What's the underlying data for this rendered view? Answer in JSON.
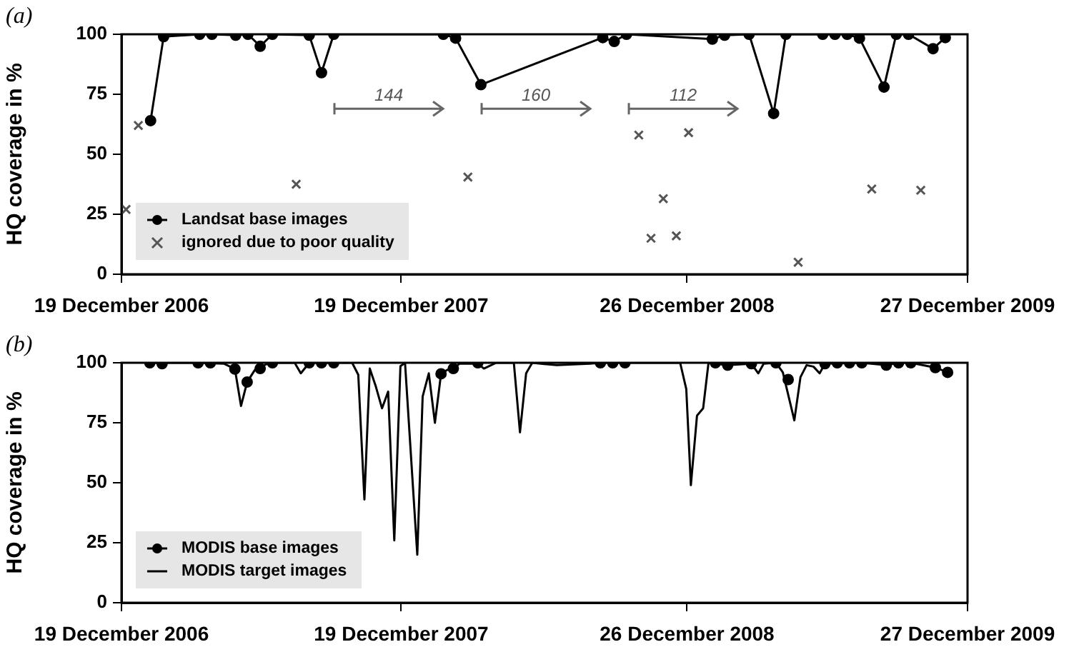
{
  "chart_data": [
    {
      "type": "line",
      "ylabel": "HQ coverage in %",
      "xlim": [
        "2006-12-19",
        "2009-12-27"
      ],
      "ylim": [
        0,
        100
      ],
      "xticks": [
        {
          "value": "2006-12-19",
          "label": "19 December 2006"
        },
        {
          "value": "2007-12-19",
          "label": "19 December 2007"
        },
        {
          "value": "2008-12-26",
          "label": "26 December 2008"
        },
        {
          "value": "2009-12-27",
          "label": "27 December 2009"
        }
      ],
      "yticks": [
        0,
        25,
        50,
        75,
        100
      ],
      "legend": "bottom left",
      "annotations": [
        "(a)",
        "144",
        "160",
        "112"
      ],
      "series": [
        {
          "name": "Landsat base images",
          "marker": "circle",
          "color": "#000000",
          "x": [
            "2007-01-26",
            "2007-02-12",
            "2007-03-31",
            "2007-04-16",
            "2007-05-17",
            "2007-06-02",
            "2007-06-18",
            "2007-07-04",
            "2007-08-21",
            "2007-09-06",
            "2007-09-22",
            "2008-02-12",
            "2008-02-28",
            "2008-04-01",
            "2008-09-07",
            "2008-09-22",
            "2008-10-08",
            "2009-01-28",
            "2009-02-13",
            "2009-03-17",
            "2009-04-18",
            "2009-05-04",
            "2009-06-21",
            "2009-07-07",
            "2009-07-23",
            "2009-08-08",
            "2009-09-09",
            "2009-09-25",
            "2009-10-11",
            "2009-11-12",
            "2009-11-28"
          ],
          "values": [
            64,
            99,
            100,
            100,
            99.6,
            100,
            95,
            100,
            99.6,
            84,
            100,
            100,
            98.4,
            79,
            98.6,
            97,
            100,
            98,
            99.6,
            100,
            67,
            100,
            100,
            100,
            100,
            98.4,
            78,
            100,
            100,
            94,
            98.6
          ]
        },
        {
          "name": "ignored due to poor quality",
          "type": "scatter",
          "marker": "cross",
          "color": "#555555",
          "x": [
            "2006-12-25",
            "2007-01-10",
            "2007-08-04",
            "2008-03-15",
            "2008-10-24",
            "2008-11-09",
            "2008-11-25",
            "2008-12-12",
            "2008-12-28",
            "2009-05-20",
            "2009-08-24",
            "2009-10-27"
          ],
          "values": [
            27,
            62,
            37.5,
            40.5,
            58,
            15,
            31.5,
            16,
            59,
            5,
            35.5,
            35
          ]
        }
      ]
    },
    {
      "type": "line",
      "ylabel": "HQ coverage in %",
      "xlim": [
        "2006-12-19",
        "2009-12-27"
      ],
      "ylim": [
        0,
        100
      ],
      "xticks": [
        {
          "value": "2006-12-19",
          "label": "19 December 2006"
        },
        {
          "value": "2007-12-19",
          "label": "19 December 2007"
        },
        {
          "value": "2008-12-26",
          "label": "26 December 2008"
        },
        {
          "value": "2009-12-27",
          "label": "27 December 2009"
        }
      ],
      "yticks": [
        0,
        25,
        50,
        75,
        100
      ],
      "legend": "bottom left",
      "annotations": [
        "(b)"
      ],
      "series": [
        {
          "name": "MODIS base images",
          "type": "scatter",
          "marker": "circle",
          "color": "#000000",
          "x": [
            "2007-01-25",
            "2007-02-10",
            "2007-03-29",
            "2007-04-14",
            "2007-05-16",
            "2007-06-01",
            "2007-06-18",
            "2007-07-04",
            "2007-08-21",
            "2007-09-06",
            "2007-09-22",
            "2008-02-09",
            "2008-02-25",
            "2008-03-28",
            "2008-09-04",
            "2008-09-20",
            "2008-10-06",
            "2009-02-01",
            "2009-02-17",
            "2009-03-20",
            "2009-04-21",
            "2009-05-07",
            "2009-06-24",
            "2009-07-10",
            "2009-07-26",
            "2009-08-11",
            "2009-09-12",
            "2009-09-28",
            "2009-10-14",
            "2009-11-15",
            "2009-12-01"
          ],
          "values": [
            100,
            99.6,
            100,
            100,
            97.4,
            92,
            97.6,
            100,
            100,
            100,
            100,
            95.4,
            97.6,
            100,
            100,
            100,
            100,
            100,
            99,
            99.6,
            100,
            93,
            99.6,
            100,
            100,
            100,
            99,
            100,
            100,
            98,
            96
          ]
        },
        {
          "name": "MODIS target images",
          "marker": "none",
          "color": "#000000",
          "x": [
            "2007-01-25",
            "2007-03-18",
            "2007-03-29",
            "2007-05-02",
            "2007-05-16",
            "2007-05-24",
            "2007-06-01",
            "2007-06-11",
            "2007-06-26",
            "2007-07-04",
            "2007-08-02",
            "2007-08-10",
            "2007-08-21",
            "2007-10-16",
            "2007-10-24",
            "2007-11-01",
            "2007-11-08",
            "2007-11-16",
            "2007-11-24",
            "2007-12-02",
            "2007-12-10",
            "2007-12-18",
            "2007-12-24",
            "2008-01-09",
            "2008-01-16",
            "2008-01-24",
            "2008-02-01",
            "2008-02-09",
            "2008-02-17",
            "2008-02-25",
            "2008-03-04",
            "2008-03-28",
            "2008-04-05",
            "2008-04-21",
            "2008-05-14",
            "2008-05-22",
            "2008-05-30",
            "2008-06-07",
            "2008-07-09",
            "2008-08-21",
            "2008-09-04",
            "2008-10-06",
            "2008-12-17",
            "2008-12-25",
            "2008-12-31",
            "2009-01-08",
            "2009-01-16",
            "2009-01-23",
            "2009-02-17",
            "2009-03-20",
            "2009-03-29",
            "2009-04-05",
            "2009-04-21",
            "2009-04-30",
            "2009-05-15",
            "2009-05-23",
            "2009-05-31",
            "2009-06-09",
            "2009-06-17",
            "2009-06-24",
            "2009-08-11",
            "2009-09-12",
            "2009-09-28",
            "2009-10-14",
            "2009-11-15",
            "2009-12-01"
          ],
          "values": [
            100,
            100,
            100,
            99.6,
            97.4,
            82,
            92,
            97,
            99.4,
            100,
            100,
            95.6,
            100,
            100,
            95,
            43,
            97.6,
            90,
            81,
            88,
            26,
            98.6,
            100,
            20,
            86,
            95.6,
            75,
            95.4,
            97,
            97.6,
            99.6,
            99.6,
            97.6,
            100,
            100,
            71,
            95.6,
            100,
            99,
            99.6,
            100,
            100,
            100,
            89,
            49,
            78,
            81,
            100,
            99,
            99.6,
            95.6,
            99.6,
            100,
            96,
            76,
            94,
            99,
            98.4,
            95.6,
            99.6,
            100,
            99,
            100,
            100,
            98,
            96
          ]
        }
      ]
    }
  ]
}
